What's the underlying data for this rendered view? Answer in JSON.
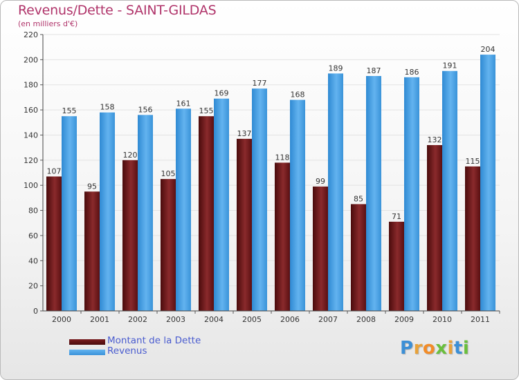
{
  "title": "Revenus/Dette - SAINT-GILDAS",
  "subtitle": "(en milliers d'€)",
  "logo_text": "Proxiti",
  "colors": {
    "title": "#b0346a",
    "dette": "#7a1d1f",
    "revenus": "#4aa3e6",
    "legend_text": "#4a5ccf"
  },
  "chart_data": {
    "type": "bar",
    "categories": [
      "2000",
      "2001",
      "2002",
      "2003",
      "2004",
      "2005",
      "2006",
      "2007",
      "2008",
      "2009",
      "2010",
      "2011"
    ],
    "series": [
      {
        "name": "Montant de la Dette",
        "values": [
          107,
          95,
          120,
          105,
          155,
          137,
          118,
          99,
          85,
          71,
          132,
          115
        ]
      },
      {
        "name": "Revenus",
        "values": [
          155,
          158,
          156,
          161,
          169,
          177,
          168,
          189,
          187,
          186,
          191,
          204
        ]
      }
    ],
    "ylim": [
      0,
      220
    ],
    "yticks": [
      0,
      20,
      40,
      60,
      80,
      100,
      120,
      140,
      160,
      180,
      200,
      220
    ],
    "grid": true,
    "legend": "bottom-left"
  }
}
